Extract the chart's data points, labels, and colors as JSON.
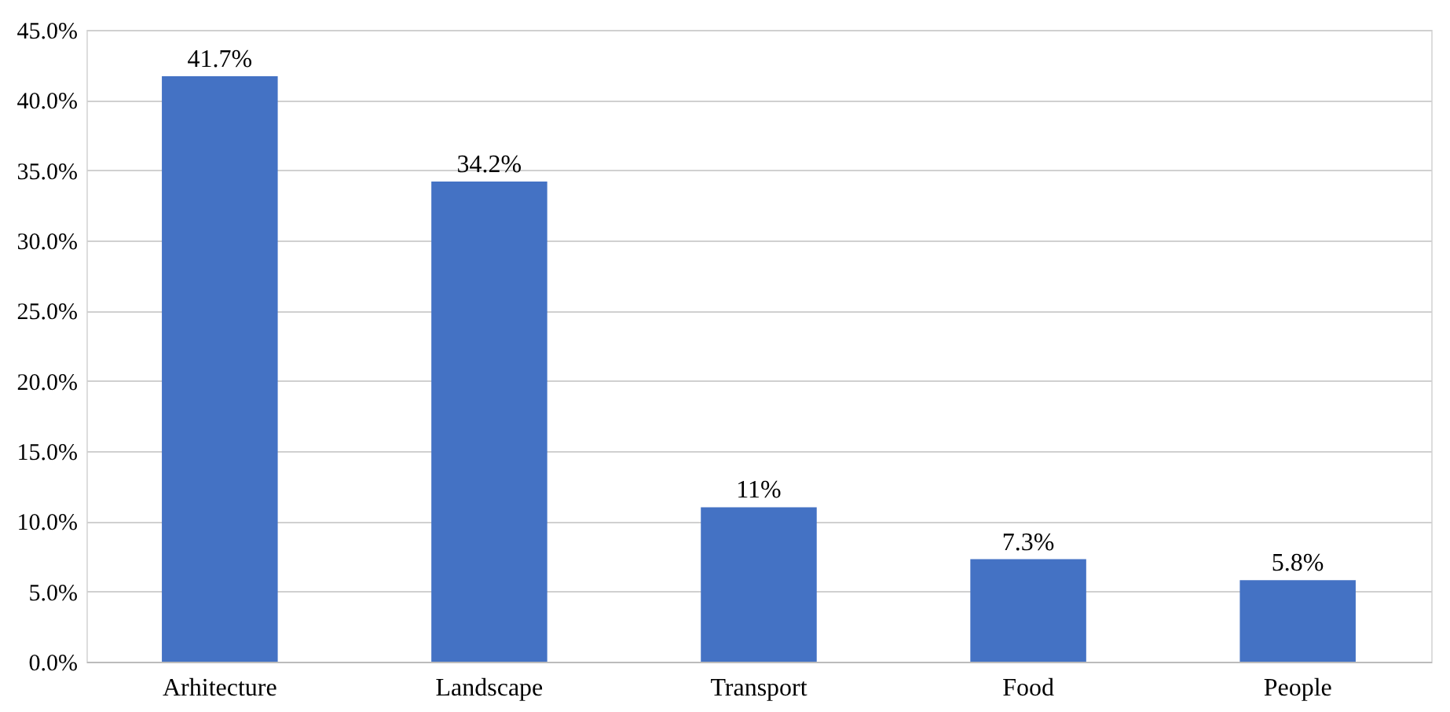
{
  "chart_data": {
    "type": "bar",
    "categories": [
      "Arhitecture",
      "Landscape",
      "Transport",
      "Food",
      "People"
    ],
    "values": [
      41.7,
      34.2,
      11,
      7.3,
      5.8
    ],
    "value_labels": [
      "41.7%",
      "34.2%",
      "11%",
      "7.3%",
      "5.8%"
    ],
    "color": "#4472c4",
    "ylim": [
      0,
      45
    ],
    "yticks": [
      {
        "value": 0,
        "label": "0.0%"
      },
      {
        "value": 5,
        "label": "5.0%"
      },
      {
        "value": 10,
        "label": "10.0%"
      },
      {
        "value": 15,
        "label": "15.0%"
      },
      {
        "value": 20,
        "label": "20.0%"
      },
      {
        "value": 25,
        "label": "25.0%"
      },
      {
        "value": 30,
        "label": "30.0%"
      },
      {
        "value": 35,
        "label": "35.0%"
      },
      {
        "value": 40,
        "label": "40.0%"
      },
      {
        "value": 45,
        "label": "45.0%"
      }
    ],
    "grid": "y"
  }
}
